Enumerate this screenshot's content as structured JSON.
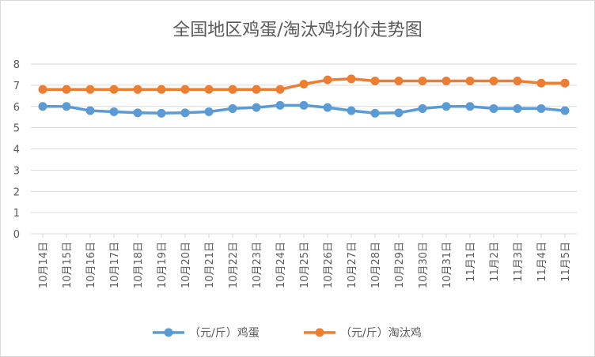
{
  "chart_data": {
    "type": "line",
    "title": "全国地区鸡蛋/淘汰鸡均价走势图",
    "categories": [
      "10月14日",
      "10月15日",
      "10月16日",
      "10月17日",
      "10月18日",
      "10月19日",
      "10月20日",
      "10月21日",
      "10月22日",
      "10月23日",
      "10月24日",
      "10月25日",
      "10月26日",
      "10月27日",
      "10月28日",
      "10月29日",
      "10月30日",
      "10月31日",
      "11月1日",
      "11月2日",
      "11月3日",
      "11月4日",
      "11月5日"
    ],
    "series": [
      {
        "name": "（元/斤）鸡蛋",
        "color": "#5b9bd5",
        "values": [
          6.0,
          6.0,
          5.8,
          5.75,
          5.7,
          5.68,
          5.7,
          5.75,
          5.9,
          5.95,
          6.05,
          6.05,
          5.95,
          5.8,
          5.68,
          5.7,
          5.9,
          6.0,
          6.0,
          5.9,
          5.9,
          5.9,
          5.8
        ]
      },
      {
        "name": "（元/斤）淘汰鸡",
        "color": "#ed7d31",
        "values": [
          6.8,
          6.8,
          6.8,
          6.8,
          6.8,
          6.8,
          6.8,
          6.8,
          6.8,
          6.8,
          6.8,
          7.05,
          7.25,
          7.3,
          7.2,
          7.2,
          7.2,
          7.2,
          7.2,
          7.2,
          7.2,
          7.1,
          7.1
        ]
      }
    ],
    "ylim": [
      0,
      8
    ],
    "yticks": [
      0,
      1,
      2,
      3,
      4,
      5,
      6,
      7,
      8
    ],
    "grid": true,
    "legend": "bottom",
    "xlabel": "",
    "ylabel": ""
  }
}
